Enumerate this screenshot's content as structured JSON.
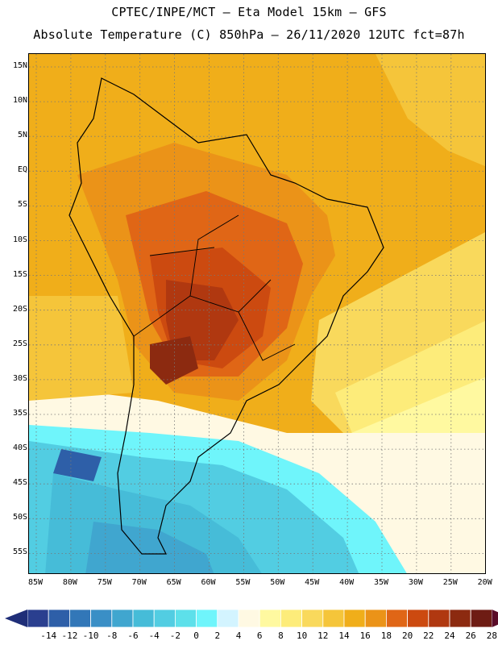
{
  "header": {
    "title_line1": "CPTEC/INPE/MCT –  Eta Model 15km – GFS",
    "title_line2": "Absolute Temperature (C) 850hPa – 26/11/2020 12UTC fct=87h"
  },
  "map": {
    "lat_labels": [
      "15N",
      "10N",
      "5N",
      "EQ",
      "5S",
      "10S",
      "15S",
      "20S",
      "25S",
      "30S",
      "35S",
      "40S",
      "45S",
      "50S",
      "55S"
    ],
    "lon_labels": [
      "85W",
      "80W",
      "75W",
      "70W",
      "65W",
      "60W",
      "55W",
      "50W",
      "45W",
      "40W",
      "35W",
      "30W",
      "25W",
      "20W"
    ]
  },
  "colorbar": {
    "labels": [
      "-14",
      "-12",
      "-10",
      "-8",
      "-6",
      "-4",
      "-2",
      "0",
      "2",
      "4",
      "6",
      "8",
      "10",
      "12",
      "14",
      "16",
      "18",
      "20",
      "22",
      "24",
      "26",
      "28"
    ],
    "colors": [
      "#2a3f8f",
      "#2e5fa8",
      "#3277b8",
      "#3a8fc6",
      "#40a6cf",
      "#46bcd8",
      "#52cde2",
      "#5de0ea",
      "#6ff5fb",
      "#d3f4ff",
      "#fff9e3",
      "#fff9a0",
      "#fdec7a",
      "#f9d95c",
      "#f5c53a",
      "#f0ae1a",
      "#eb9318",
      "#e06616",
      "#cc4a10",
      "#b03810",
      "#8c2a10",
      "#6e1c14"
    ],
    "left_arrow_color": "#1f2e78",
    "right_arrow_color": "#5a0c28"
  }
}
